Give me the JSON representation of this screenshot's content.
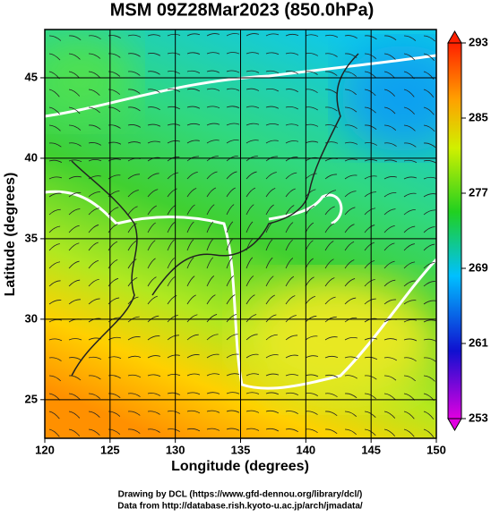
{
  "chart_data": {
    "type": "map",
    "title": "MSM 09Z28Mar2023 (850.0hPa)",
    "xlabel": "Longitude (degrees)",
    "ylabel": "Latitude  (degrees)",
    "xlim": [
      120,
      150
    ],
    "xticks": [
      120,
      125,
      130,
      135,
      140,
      145,
      150
    ],
    "ylim": [
      22.6,
      48
    ],
    "yticks": [
      25,
      30,
      35,
      40,
      45
    ],
    "grid": true,
    "colorbar": {
      "lim": [
        253,
        293
      ],
      "ticks": [
        253,
        261,
        269,
        277,
        285,
        293
      ]
    },
    "footer": [
      "Drawing by DCL (https://www.gfd-dennou.org/library/dcl/)",
      "Data from http://database.rish.kyoto-u.ac.jp/arch/jmadata/"
    ]
  }
}
